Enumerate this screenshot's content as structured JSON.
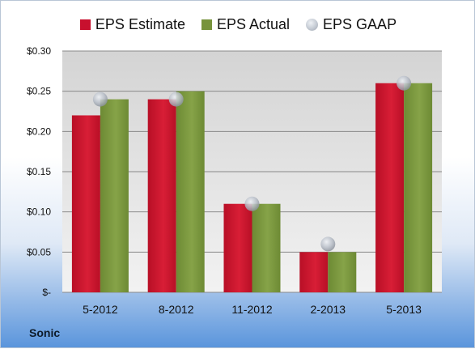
{
  "chart_data": {
    "type": "bar",
    "categories": [
      "5-2012",
      "8-2012",
      "11-2012",
      "2-2013",
      "5-2013"
    ],
    "series": [
      {
        "name": "EPS Estimate",
        "values": [
          0.22,
          0.24,
          0.11,
          0.05,
          0.26
        ],
        "color": "#c8102e",
        "kind": "bar"
      },
      {
        "name": "EPS Actual",
        "values": [
          0.24,
          0.25,
          0.11,
          0.05,
          0.26
        ],
        "color": "#77933c",
        "kind": "bar"
      },
      {
        "name": "EPS GAAP",
        "values": [
          0.24,
          0.24,
          0.11,
          0.06,
          0.26
        ],
        "color": "#b8bec8",
        "kind": "marker"
      }
    ],
    "y_ticks": [
      "$-",
      "$0.05",
      "$0.10",
      "$0.15",
      "$0.20",
      "$0.25",
      "$0.30"
    ],
    "ylim": [
      0,
      0.3
    ],
    "grid": true,
    "legend_position": "top",
    "title": "",
    "xlabel": "",
    "ylabel": ""
  },
  "footer": {
    "company": "Sonic"
  }
}
